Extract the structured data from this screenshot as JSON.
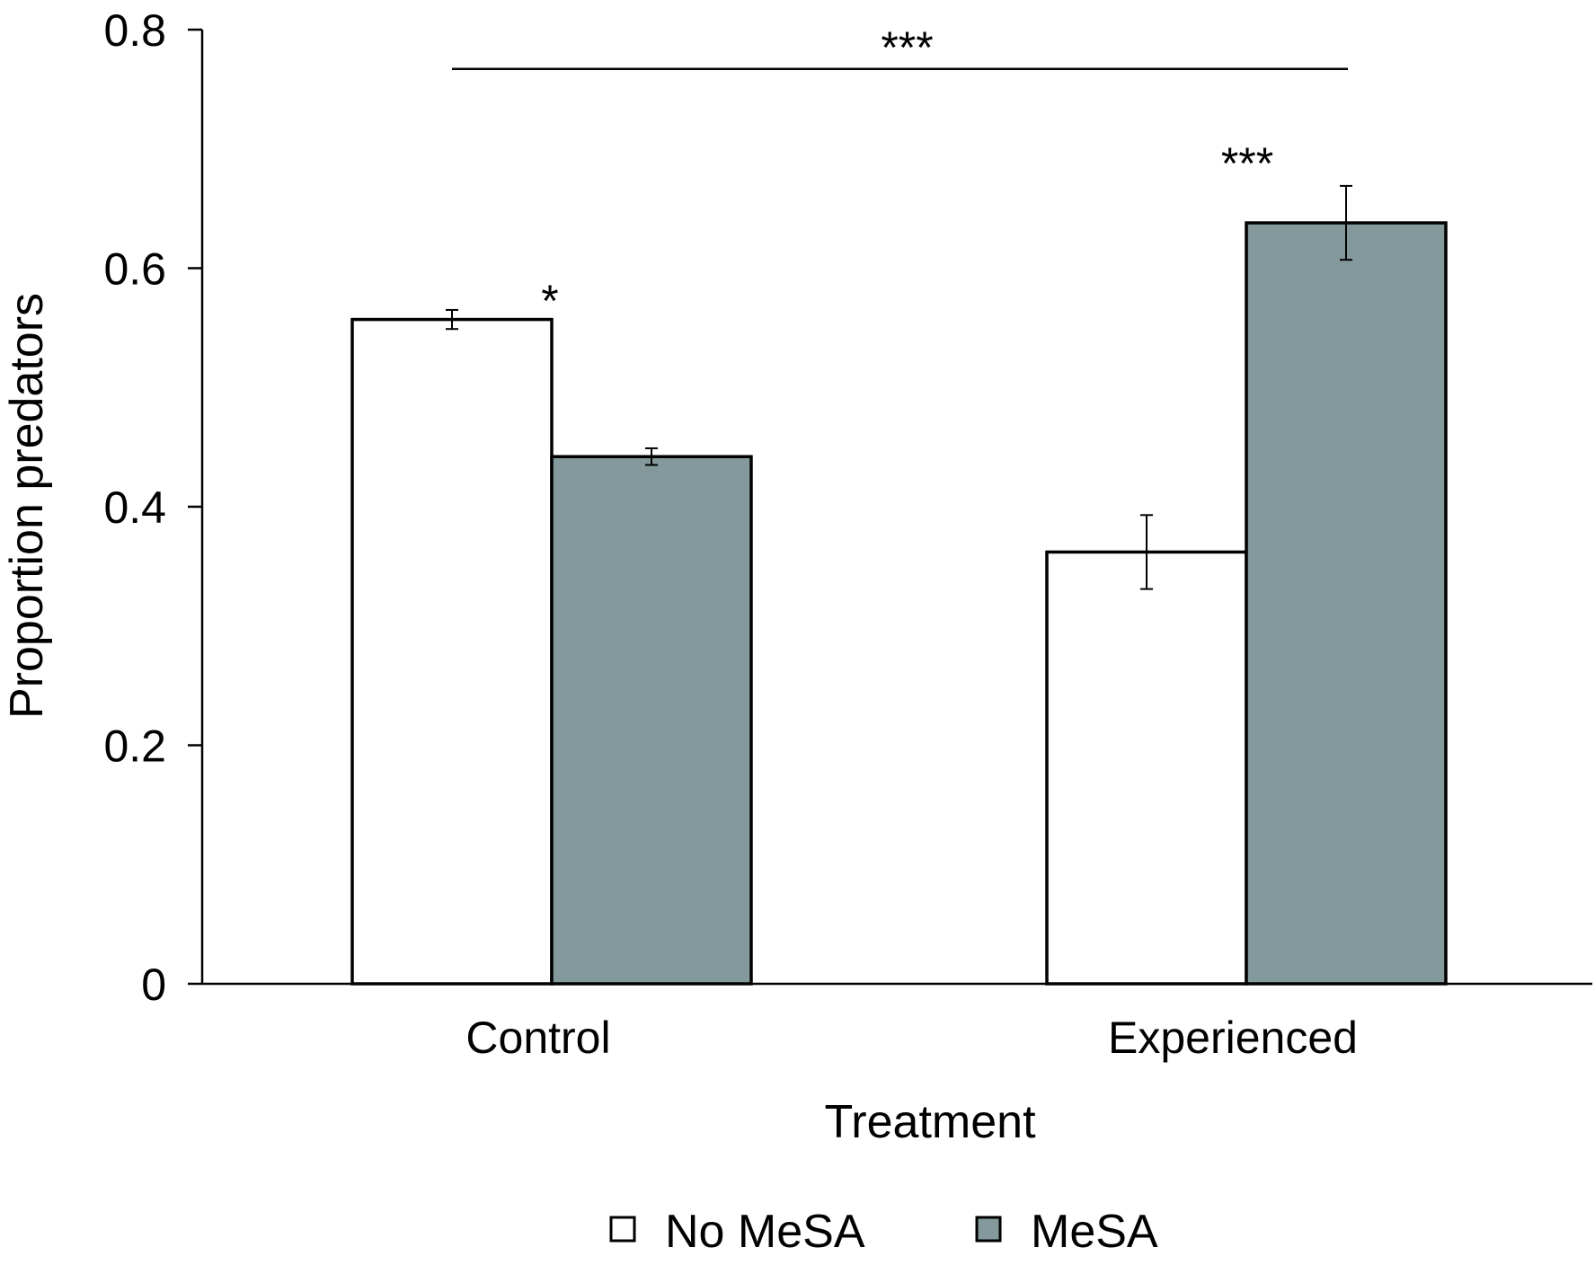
{
  "chart_data": {
    "type": "bar",
    "title": "",
    "xlabel": "Treatment",
    "ylabel": "Proportion predators",
    "ylim": [
      0,
      0.8
    ],
    "yticks": [
      0,
      0.2,
      0.4,
      0.6,
      0.8
    ],
    "ytick_labels": [
      "0",
      "0.2",
      "0.4",
      "0.6",
      "0.8"
    ],
    "categories": [
      "Control",
      "Experienced"
    ],
    "series": [
      {
        "name": "No MeSA",
        "color": "#ffffff",
        "values": [
          0.557,
          0.362
        ],
        "errors": [
          0.008,
          0.031
        ]
      },
      {
        "name": "MeSA",
        "color": "#83999b",
        "values": [
          0.442,
          0.638
        ],
        "errors": [
          0.007,
          0.031
        ]
      }
    ],
    "annotations": [
      {
        "text": "*",
        "category": 0,
        "series": 0
      },
      {
        "text": "***",
        "category": 1,
        "series": 1
      }
    ],
    "bracket": {
      "text": "***",
      "y": 0.767
    },
    "grid": false,
    "legend_position": "bottom"
  }
}
